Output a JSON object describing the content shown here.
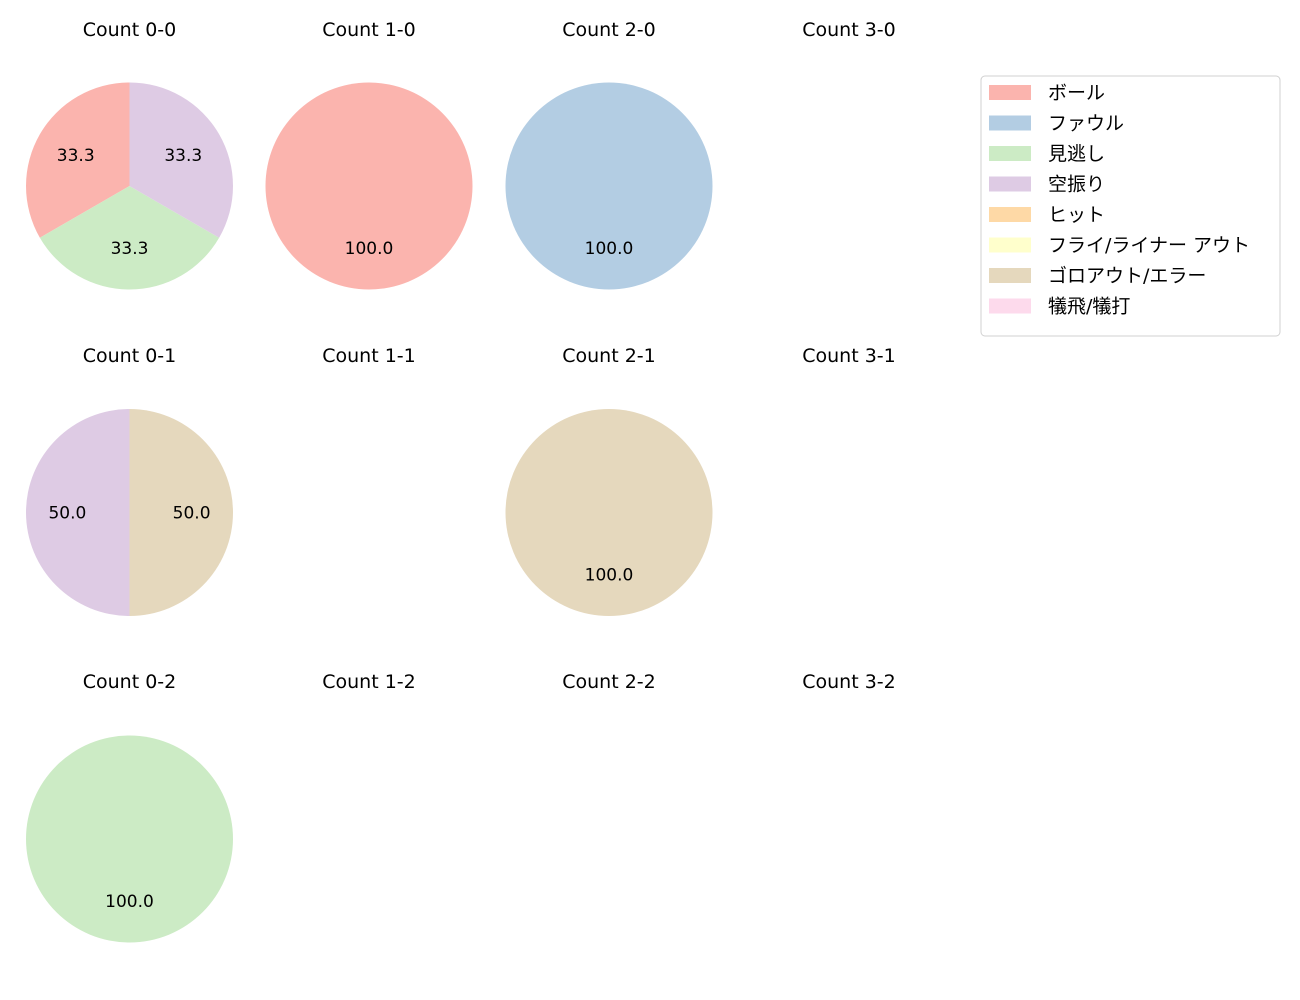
{
  "chart_data": {
    "type": "pie",
    "legend": {
      "placement": "top-right",
      "entries": [
        {
          "label": "ボール",
          "color": "#fbb4ae"
        },
        {
          "label": "ファウル",
          "color": "#b3cde3"
        },
        {
          "label": "見逃し",
          "color": "#ccebc5"
        },
        {
          "label": "空振り",
          "color": "#decbe4"
        },
        {
          "label": "ヒット",
          "color": "#fed9a6"
        },
        {
          "label": "フライ/ライナー アウト",
          "color": "#ffffcc"
        },
        {
          "label": "ゴロアウト/エラー",
          "color": "#e5d8bd"
        },
        {
          "label": "犠飛/犠打",
          "color": "#fddaec"
        }
      ]
    },
    "panels": [
      {
        "title": "Count 0-0",
        "row": 0,
        "col": 0,
        "slices": [
          {
            "category": "ボール",
            "value": 33.3
          },
          {
            "category": "見逃し",
            "value": 33.3
          },
          {
            "category": "空振り",
            "value": 33.3
          }
        ]
      },
      {
        "title": "Count 1-0",
        "row": 0,
        "col": 1,
        "slices": [
          {
            "category": "ボール",
            "value": 100.0
          }
        ]
      },
      {
        "title": "Count 2-0",
        "row": 0,
        "col": 2,
        "slices": [
          {
            "category": "ファウル",
            "value": 100.0
          }
        ]
      },
      {
        "title": "Count 3-0",
        "row": 0,
        "col": 3,
        "slices": []
      },
      {
        "title": "Count 0-1",
        "row": 1,
        "col": 0,
        "slices": [
          {
            "category": "空振り",
            "value": 50.0
          },
          {
            "category": "ゴロアウト/エラー",
            "value": 50.0
          }
        ]
      },
      {
        "title": "Count 1-1",
        "row": 1,
        "col": 1,
        "slices": []
      },
      {
        "title": "Count 2-1",
        "row": 1,
        "col": 2,
        "slices": [
          {
            "category": "ゴロアウト/エラー",
            "value": 100.0
          }
        ]
      },
      {
        "title": "Count 3-1",
        "row": 1,
        "col": 3,
        "slices": []
      },
      {
        "title": "Count 0-2",
        "row": 2,
        "col": 0,
        "slices": [
          {
            "category": "見逃し",
            "value": 100.0
          }
        ]
      },
      {
        "title": "Count 1-2",
        "row": 2,
        "col": 1,
        "slices": []
      },
      {
        "title": "Count 2-2",
        "row": 2,
        "col": 2,
        "slices": []
      },
      {
        "title": "Count 3-2",
        "row": 2,
        "col": 3,
        "slices": []
      }
    ]
  }
}
